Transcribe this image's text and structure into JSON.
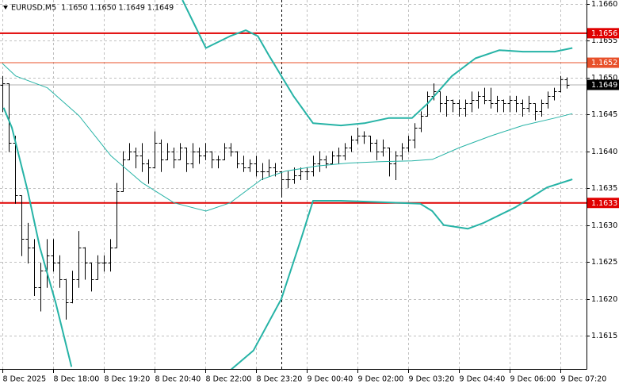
{
  "chart_data": {
    "type": "candlestick",
    "title": "EURUSD,M5  1.1650 1.1650 1.1649 1.1649",
    "xlim": [
      -3.75,
      921.25
    ],
    "xticks": [
      {
        "value": 0,
        "label": "8 Dec 2025"
      },
      {
        "value": 80,
        "label": "8 Dec 18:00"
      },
      {
        "value": 160,
        "label": "8 Dec 19:20"
      },
      {
        "value": 240,
        "label": "8 Dec 20:40"
      },
      {
        "value": 320,
        "label": "8 Dec 22:00"
      },
      {
        "value": 400,
        "label": "8 Dec 23:20"
      },
      {
        "value": 480,
        "label": "9 Dec 00:40"
      },
      {
        "value": 560,
        "label": "9 Dec 02:00"
      },
      {
        "value": 640,
        "label": "9 Dec 03:20"
      },
      {
        "value": 720,
        "label": "9 Dec 04:40"
      },
      {
        "value": 800,
        "label": "9 Dec 06:00"
      },
      {
        "value": 880,
        "label": "9 Dec 07:20"
      }
    ],
    "ylim": [
      1.16105,
      1.16605
    ],
    "yticks": [
      {
        "value": 1.166,
        "label": "1.1660"
      },
      1.1655,
      {
        "value": 1.165,
        "label": "1.1650"
      },
      1.1645,
      {
        "value": 1.164,
        "label": "1.1640"
      },
      1.1635,
      {
        "value": 1.163,
        "label": "1.1630"
      },
      1.1625,
      {
        "value": 1.162,
        "label": "1.1620"
      },
      1.1615
    ],
    "grid": true,
    "day_separator_x": 440,
    "candle_color": "#000000",
    "candles": {
      "x": [
        0,
        10,
        20,
        30,
        40,
        50,
        60,
        70,
        80,
        90,
        100,
        110,
        120,
        130,
        140,
        150,
        160,
        170,
        180,
        190,
        200,
        210,
        220,
        230,
        240,
        250,
        260,
        270,
        280,
        290,
        300,
        310,
        320,
        330,
        340,
        350,
        360,
        370,
        380,
        390,
        400,
        410,
        420,
        430,
        440,
        450,
        460,
        470,
        480,
        490,
        500,
        510,
        520,
        530,
        540,
        550,
        560,
        570,
        580,
        590,
        600,
        610,
        620,
        630,
        640,
        650,
        660,
        670,
        680,
        690,
        700,
        710,
        720,
        730,
        740,
        750,
        760,
        770,
        780,
        790,
        800,
        810,
        820,
        830,
        840,
        850,
        860,
        870,
        880,
        890
      ],
      "open": [
        1.1649,
        1.16492,
        1.16411,
        1.1634,
        1.16281,
        1.1627,
        1.16216,
        1.16238,
        1.16259,
        1.16249,
        1.16227,
        1.16195,
        1.16227,
        1.1627,
        1.16249,
        1.16227,
        1.16249,
        1.16249,
        1.1627,
        1.16346,
        1.16389,
        1.164,
        1.16394,
        1.16384,
        1.16378,
        1.16411,
        1.16389,
        1.164,
        1.16389,
        1.16405,
        1.16384,
        1.164,
        1.16394,
        1.164,
        1.16389,
        1.16389,
        1.16405,
        1.164,
        1.16384,
        1.16378,
        1.16384,
        1.16373,
        1.16373,
        1.16378,
        1.16373,
        1.16362,
        1.16362,
        1.16367,
        1.16373,
        1.16373,
        1.16384,
        1.16389,
        1.16384,
        1.16394,
        1.16394,
        1.16405,
        1.16416,
        1.16421,
        1.16421,
        1.16411,
        1.164,
        1.16405,
        1.16384,
        1.16394,
        1.16405,
        1.16416,
        1.16432,
        1.16448,
        1.16475,
        1.16481,
        1.16465,
        1.1647,
        1.16465,
        1.16459,
        1.16465,
        1.1647,
        1.16475,
        1.1647,
        1.16465,
        1.1647,
        1.16465,
        1.1647,
        1.16465,
        1.16459,
        1.16465,
        1.16454,
        1.16465,
        1.16475,
        1.16481,
        1.16497
      ],
      "high": [
        1.16502,
        1.16492,
        1.16421,
        1.1634,
        1.16303,
        1.16281,
        1.16249,
        1.16281,
        1.16281,
        1.16259,
        1.16227,
        1.16238,
        1.16292,
        1.1627,
        1.16249,
        1.16259,
        1.16259,
        1.16281,
        1.16357,
        1.164,
        1.16411,
        1.16405,
        1.16411,
        1.16389,
        1.16427,
        1.16416,
        1.16411,
        1.16405,
        1.16411,
        1.16405,
        1.16411,
        1.16405,
        1.16411,
        1.164,
        1.16394,
        1.16411,
        1.16411,
        1.164,
        1.16394,
        1.16389,
        1.16394,
        1.16384,
        1.16389,
        1.16384,
        1.16373,
        1.16373,
        1.16378,
        1.16378,
        1.16378,
        1.16394,
        1.164,
        1.16394,
        1.164,
        1.16405,
        1.16411,
        1.16421,
        1.16432,
        1.16427,
        1.16421,
        1.16416,
        1.16416,
        1.16405,
        1.164,
        1.16411,
        1.16421,
        1.16438,
        1.16454,
        1.16481,
        1.16492,
        1.16481,
        1.16475,
        1.1647,
        1.1647,
        1.1647,
        1.16481,
        1.16481,
        1.16486,
        1.16486,
        1.16475,
        1.1647,
        1.16475,
        1.16475,
        1.1647,
        1.16475,
        1.16465,
        1.1647,
        1.16481,
        1.16486,
        1.16502,
        1.165
      ],
      "low": [
        1.16454,
        1.164,
        1.1633,
        1.16259,
        1.16249,
        1.16205,
        1.16184,
        1.16216,
        1.16238,
        1.16216,
        1.16173,
        1.16195,
        1.16216,
        1.16227,
        1.16211,
        1.16227,
        1.16238,
        1.16238,
        1.1627,
        1.16346,
        1.16389,
        1.16378,
        1.16373,
        1.16357,
        1.16378,
        1.16373,
        1.16389,
        1.16378,
        1.16389,
        1.16373,
        1.16378,
        1.16384,
        1.16389,
        1.16378,
        1.16378,
        1.16389,
        1.16394,
        1.16378,
        1.16373,
        1.16373,
        1.16367,
        1.16362,
        1.16367,
        1.16367,
        1.1634,
        1.16351,
        1.16357,
        1.16362,
        1.16362,
        1.16367,
        1.16373,
        1.16378,
        1.16384,
        1.16384,
        1.16389,
        1.164,
        1.16411,
        1.16411,
        1.164,
        1.16389,
        1.16394,
        1.16367,
        1.16362,
        1.16389,
        1.164,
        1.16405,
        1.16427,
        1.16448,
        1.1647,
        1.16454,
        1.16448,
        1.16454,
        1.16448,
        1.16448,
        1.16454,
        1.16459,
        1.16465,
        1.16459,
        1.16454,
        1.16454,
        1.16454,
        1.16454,
        1.16448,
        1.16454,
        1.16443,
        1.16448,
        1.16459,
        1.1647,
        1.16481,
        1.16486
      ],
      "close": [
        1.16492,
        1.16411,
        1.1634,
        1.16281,
        1.1627,
        1.16216,
        1.16238,
        1.16259,
        1.16249,
        1.16227,
        1.16195,
        1.16227,
        1.1627,
        1.16249,
        1.16227,
        1.16249,
        1.16249,
        1.1627,
        1.16346,
        1.16389,
        1.164,
        1.16394,
        1.16384,
        1.16378,
        1.16411,
        1.16389,
        1.164,
        1.16389,
        1.16405,
        1.16384,
        1.164,
        1.16394,
        1.164,
        1.16389,
        1.16389,
        1.16405,
        1.164,
        1.16384,
        1.16378,
        1.16384,
        1.16373,
        1.16373,
        1.16378,
        1.16373,
        1.16362,
        1.16362,
        1.16367,
        1.16373,
        1.16373,
        1.16384,
        1.16389,
        1.16384,
        1.16394,
        1.16394,
        1.16405,
        1.16416,
        1.16421,
        1.16421,
        1.16411,
        1.164,
        1.16405,
        1.16384,
        1.16394,
        1.16405,
        1.16416,
        1.16432,
        1.16448,
        1.16475,
        1.16481,
        1.16465,
        1.1647,
        1.16465,
        1.16459,
        1.16465,
        1.1647,
        1.16475,
        1.1647,
        1.16465,
        1.1647,
        1.16465,
        1.1647,
        1.16465,
        1.16459,
        1.16465,
        1.16454,
        1.16465,
        1.16475,
        1.16481,
        1.16497,
        1.1649
      ]
    },
    "lines": [
      {
        "color": "#26b3a6",
        "x": [
          284,
          321,
          359,
          384,
          403,
          421,
          459,
          490,
          534,
          571,
          609,
          646,
          671,
          709,
          746,
          784,
          821,
          871,
          899
        ],
        "values": [
          1.16605,
          1.1654,
          1.16556,
          1.16564,
          1.16556,
          1.16529,
          1.16475,
          1.16438,
          1.16435,
          1.16438,
          1.16445,
          1.16445,
          1.16465,
          1.16502,
          1.16526,
          1.16537,
          1.16535,
          1.16535,
          1.1654
        ]
      },
      {
        "color": "#26b3a6",
        "x": [
          2,
          15,
          40,
          59,
          84,
          109,
          200,
          359,
          396,
          440,
          471,
          490,
          534,
          596,
          659,
          678,
          696,
          734,
          759,
          809,
          859,
          899
        ],
        "values": [
          1.16459,
          1.16432,
          1.16346,
          1.1627,
          1.16195,
          1.16108,
          null,
          1.16103,
          1.1613,
          1.162,
          1.16281,
          1.16333,
          1.16333,
          1.16331,
          1.16329,
          1.16319,
          1.163,
          1.16295,
          1.16303,
          1.16324,
          1.16351,
          1.16362
        ]
      },
      {
        "color": "#26b3a6",
        "x": [
          0,
          21,
          71,
          121,
          171,
          221,
          271,
          321,
          359,
          409,
          446,
          496,
          546,
          596,
          646,
          678,
          721,
          771,
          821,
          871,
          899
        ],
        "values": [
          1.16519,
          1.16502,
          1.16486,
          1.16448,
          1.16394,
          1.16357,
          1.1633,
          1.16319,
          1.1633,
          1.16362,
          1.16373,
          1.1638,
          1.16384,
          1.16386,
          1.16387,
          1.16389,
          1.16405,
          1.16421,
          1.16435,
          1.16445,
          1.16451
        ]
      }
    ],
    "levels": [
      {
        "value": 1.1656,
        "color": "#e00000"
      },
      {
        "value": 1.1652,
        "color": "#e8502a"
      },
      {
        "value": 1.1633,
        "color": "#e00000"
      }
    ],
    "bid": {
      "value": 1.1649,
      "color": "#000000"
    }
  }
}
